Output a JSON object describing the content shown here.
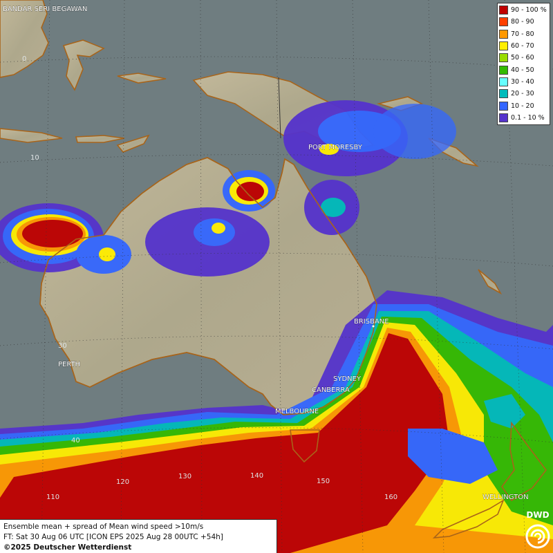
{
  "cities": [
    {
      "name": "BANDAR SERI BEGAWAN"
    },
    {
      "name": "PORT MORESBY"
    },
    {
      "name": "BRISBANE"
    },
    {
      "name": "SYDNEY"
    },
    {
      "name": "CANBERRA"
    },
    {
      "name": "MELBOURNE"
    },
    {
      "name": "PERTH"
    },
    {
      "name": "WELLINGTON"
    }
  ],
  "grid_labels": {
    "lat_0": "0",
    "lat_10": "10",
    "lat_30": "30",
    "lat_40": "40",
    "lon_110": "110",
    "lon_120": "120",
    "lon_130": "130",
    "lon_140": "140",
    "lon_150": "150",
    "lon_160": "160"
  },
  "legend": [
    {
      "label": "90 - 100 %",
      "color": "#c00000"
    },
    {
      "label": "80 - 90",
      "color": "#ff4000"
    },
    {
      "label": "70 - 80",
      "color": "#ff9900"
    },
    {
      "label": "60 - 70",
      "color": "#ffee00"
    },
    {
      "label": "50 - 60",
      "color": "#99dd00"
    },
    {
      "label": "40 - 50",
      "color": "#33bb00"
    },
    {
      "label": "30 - 40",
      "color": "#66ffff"
    },
    {
      "label": "20 - 30",
      "color": "#00bbbb"
    },
    {
      "label": "10 - 20",
      "color": "#3366ff"
    },
    {
      "label": "0.1 - 10 %",
      "color": "#5533cc"
    }
  ],
  "caption": {
    "line1": "Ensemble mean + spread of Mean wind speed >10m/s",
    "line2": "FT: Sat 30 Aug 06 UTC [ICON EPS 2025 Aug 28 00UTC +54h]",
    "line3": "©2025 Deutscher Wetterdienst"
  },
  "logo": {
    "text": "DWD"
  },
  "colors": {
    "sea": "#6f7d80",
    "land": "#b5ad92",
    "coast": "#a8641a"
  }
}
